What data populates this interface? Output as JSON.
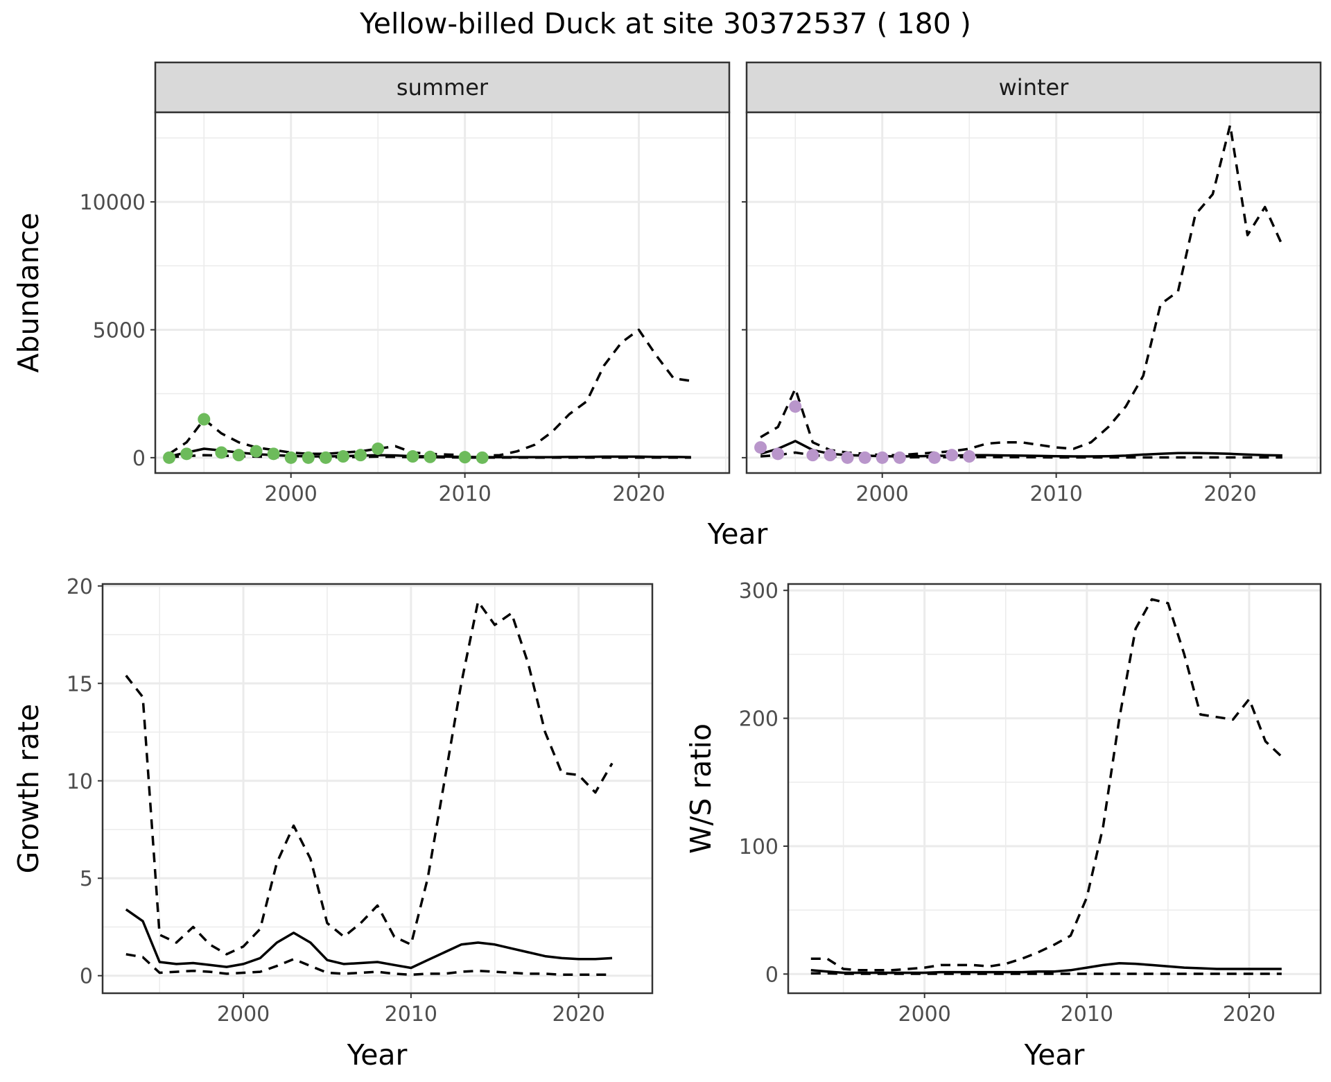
{
  "chart_data": {
    "title": "Yellow-billed Duck at site 30372537 ( 180 )",
    "panels": [
      {
        "type": "line",
        "facet": "summer",
        "xlabel": "Year",
        "ylabel": "Abundance",
        "xlim": [
          1992.2,
          2025.2
        ],
        "ylim": [
          -600,
          13500
        ],
        "xticks": [
          2000,
          2010,
          2020
        ],
        "yticks": [
          0,
          5000,
          10000
        ],
        "grid": true,
        "point_color": "#6dbb5b",
        "upper": {
          "x": [
            1993,
            1994,
            1995,
            1996,
            1997,
            1998,
            1999,
            2000,
            2001,
            2002,
            2003,
            2004,
            2005,
            2006,
            2007,
            2008,
            2009,
            2010,
            2011,
            2012,
            2013,
            2014,
            2015,
            2016,
            2017,
            2018,
            2019,
            2020,
            2021,
            2022,
            2023
          ],
          "y": [
            150,
            600,
            1500,
            950,
            600,
            400,
            300,
            200,
            150,
            150,
            200,
            250,
            350,
            450,
            200,
            150,
            120,
            100,
            80,
            100,
            250,
            500,
            1000,
            1700,
            2200,
            3600,
            4500,
            5000,
            4000,
            3100,
            3000
          ]
        },
        "median": {
          "x": [
            1993,
            1994,
            1995,
            1996,
            1997,
            1998,
            1999,
            2000,
            2001,
            2002,
            2003,
            2004,
            2005,
            2006,
            2007,
            2008,
            2009,
            2010,
            2011,
            2012,
            2013,
            2014,
            2015,
            2016,
            2017,
            2018,
            2019,
            2020,
            2021,
            2022,
            2023
          ],
          "y": [
            50,
            200,
            350,
            280,
            200,
            140,
            100,
            70,
            50,
            50,
            60,
            80,
            100,
            90,
            60,
            50,
            40,
            30,
            20,
            20,
            20,
            20,
            20,
            30,
            30,
            40,
            40,
            40,
            30,
            30,
            20
          ]
        },
        "lower": {
          "x": [
            1993,
            1994,
            1995,
            1996,
            1997,
            1998,
            1999,
            2000,
            2001,
            2002,
            2003,
            2004,
            2005,
            2006,
            2007,
            2008,
            2009,
            2010,
            2011,
            2012,
            2013,
            2014,
            2015,
            2016,
            2017,
            2018,
            2019,
            2020,
            2021,
            2022,
            2023
          ],
          "y": [
            20,
            60,
            100,
            80,
            60,
            40,
            30,
            20,
            10,
            10,
            20,
            30,
            40,
            30,
            20,
            20,
            10,
            5,
            5,
            5,
            5,
            5,
            5,
            5,
            5,
            5,
            5,
            5,
            5,
            5,
            5
          ]
        },
        "observed": {
          "x": [
            1993,
            1994,
            1995,
            1996,
            1997,
            1998,
            1999,
            2000,
            2001,
            2002,
            2003,
            2004,
            2005,
            2007,
            2008,
            2010,
            2011
          ],
          "y": [
            0,
            150,
            1500,
            200,
            100,
            250,
            150,
            0,
            0,
            0,
            50,
            100,
            350,
            50,
            30,
            20,
            0
          ]
        }
      },
      {
        "type": "line",
        "facet": "winter",
        "xlabel": "Year",
        "ylabel": "Abundance",
        "xlim": [
          1992.2,
          2025.2
        ],
        "ylim": [
          -600,
          13500
        ],
        "xticks": [
          2000,
          2010,
          2020
        ],
        "yticks": [
          0,
          5000,
          10000
        ],
        "grid": true,
        "point_color": "#b996cb",
        "upper": {
          "x": [
            1993,
            1994,
            1995,
            1996,
            1997,
            1998,
            1999,
            2000,
            2001,
            2002,
            2003,
            2004,
            2005,
            2006,
            2007,
            2008,
            2009,
            2010,
            2011,
            2012,
            2013,
            2014,
            2015,
            2016,
            2017,
            2018,
            2019,
            2020,
            2021,
            2022,
            2023
          ],
          "y": [
            800,
            1200,
            2700,
            600,
            300,
            200,
            150,
            100,
            100,
            150,
            200,
            250,
            350,
            550,
            600,
            600,
            500,
            400,
            350,
            600,
            1200,
            2000,
            3200,
            6000,
            6500,
            9500,
            10300,
            13000,
            8700,
            9800,
            8300
          ]
        },
        "median": {
          "x": [
            1993,
            1994,
            1995,
            1996,
            1997,
            1998,
            1999,
            2000,
            2001,
            2002,
            2003,
            2004,
            2005,
            2006,
            2007,
            2008,
            2009,
            2010,
            2011,
            2012,
            2013,
            2014,
            2015,
            2016,
            2017,
            2018,
            2019,
            2020,
            2021,
            2022,
            2023
          ],
          "y": [
            150,
            350,
            650,
            300,
            150,
            100,
            80,
            60,
            50,
            60,
            70,
            80,
            100,
            100,
            90,
            80,
            70,
            60,
            50,
            50,
            60,
            80,
            120,
            150,
            180,
            180,
            170,
            150,
            120,
            100,
            90
          ]
        },
        "lower": {
          "x": [
            1993,
            1994,
            1995,
            1996,
            1997,
            1998,
            1999,
            2000,
            2001,
            2002,
            2003,
            2004,
            2005,
            2006,
            2007,
            2008,
            2009,
            2010,
            2011,
            2012,
            2013,
            2014,
            2015,
            2016,
            2017,
            2018,
            2019,
            2020,
            2021,
            2022,
            2023
          ],
          "y": [
            50,
            100,
            200,
            100,
            50,
            30,
            20,
            15,
            10,
            15,
            20,
            20,
            25,
            25,
            20,
            20,
            15,
            10,
            10,
            10,
            10,
            10,
            10,
            10,
            10,
            10,
            10,
            10,
            10,
            10,
            10
          ]
        },
        "observed": {
          "x": [
            1993,
            1994,
            1995,
            1996,
            1997,
            1998,
            1999,
            2000,
            2001,
            2003,
            2004,
            2005
          ],
          "y": [
            400,
            150,
            2000,
            100,
            100,
            0,
            0,
            0,
            0,
            0,
            100,
            50
          ]
        }
      },
      {
        "type": "line",
        "xlabel": "Year",
        "ylabel": "Growth rate",
        "xlim": [
          1991.6,
          2024.4
        ],
        "ylim": [
          -0.9,
          20.1
        ],
        "xticks": [
          2000,
          2010,
          2020
        ],
        "yticks": [
          0,
          5,
          10,
          15,
          20
        ],
        "grid": true,
        "upper": {
          "x": [
            1993,
            1994,
            1995,
            1996,
            1997,
            1998,
            1999,
            2000,
            2001,
            2002,
            2003,
            2004,
            2005,
            2006,
            2007,
            2008,
            2009,
            2010,
            2011,
            2012,
            2013,
            2014,
            2015,
            2016,
            2017,
            2018,
            2019,
            2020,
            2021,
            2022
          ],
          "y": [
            15.4,
            14.3,
            2.1,
            1.7,
            2.5,
            1.6,
            1.1,
            1.5,
            2.4,
            5.8,
            7.7,
            6.0,
            2.7,
            2.0,
            2.7,
            3.6,
            2.0,
            1.6,
            5.0,
            10.0,
            15.0,
            19.2,
            18.0,
            18.6,
            16.0,
            12.5,
            10.4,
            10.3,
            9.4,
            10.9
          ]
        },
        "median": {
          "x": [
            1993,
            1994,
            1995,
            1996,
            1997,
            1998,
            1999,
            2000,
            2001,
            2002,
            2003,
            2004,
            2005,
            2006,
            2007,
            2008,
            2009,
            2010,
            2011,
            2012,
            2013,
            2014,
            2015,
            2016,
            2017,
            2018,
            2019,
            2020,
            2021,
            2022
          ],
          "y": [
            3.4,
            2.8,
            0.7,
            0.6,
            0.65,
            0.55,
            0.45,
            0.6,
            0.9,
            1.7,
            2.2,
            1.7,
            0.8,
            0.6,
            0.65,
            0.7,
            0.55,
            0.4,
            0.8,
            1.2,
            1.6,
            1.7,
            1.6,
            1.4,
            1.2,
            1.0,
            0.9,
            0.85,
            0.85,
            0.9
          ]
        },
        "lower": {
          "x": [
            1993,
            1994,
            1995,
            1996,
            1997,
            1998,
            1999,
            2000,
            2001,
            2002,
            2003,
            2004,
            2005,
            2006,
            2007,
            2008,
            2009,
            2010,
            2011,
            2012,
            2013,
            2014,
            2015,
            2016,
            2017,
            2018,
            2019,
            2020,
            2021,
            2022
          ],
          "y": [
            1.1,
            0.95,
            0.15,
            0.2,
            0.25,
            0.2,
            0.1,
            0.15,
            0.2,
            0.5,
            0.85,
            0.5,
            0.15,
            0.1,
            0.15,
            0.2,
            0.1,
            0.05,
            0.1,
            0.1,
            0.2,
            0.25,
            0.2,
            0.15,
            0.1,
            0.1,
            0.05,
            0.05,
            0.05,
            0.05
          ]
        }
      },
      {
        "type": "line",
        "xlabel": "Year",
        "ylabel": "W/S ratio",
        "xlim": [
          1991.6,
          2024.4
        ],
        "ylim": [
          -15,
          305
        ],
        "xticks": [
          2000,
          2010,
          2020
        ],
        "yticks": [
          0,
          100,
          200,
          300
        ],
        "grid": true,
        "upper": {
          "x": [
            1993,
            1994,
            1995,
            1996,
            1997,
            1998,
            1999,
            2000,
            2001,
            2002,
            2003,
            2004,
            2005,
            2006,
            2007,
            2008,
            2009,
            2010,
            2011,
            2012,
            2013,
            2014,
            2015,
            2016,
            2017,
            2018,
            2019,
            2020,
            2021,
            2022
          ],
          "y": [
            12,
            12,
            4,
            3,
            3,
            3,
            4,
            5,
            7,
            7,
            7,
            6,
            8,
            12,
            17,
            23,
            30,
            60,
            115,
            200,
            270,
            293,
            290,
            250,
            203,
            201,
            199,
            215,
            182,
            170
          ]
        },
        "median": {
          "x": [
            1993,
            1994,
            1995,
            1996,
            1997,
            1998,
            1999,
            2000,
            2001,
            2002,
            2003,
            2004,
            2005,
            2006,
            2007,
            2008,
            2009,
            2010,
            2011,
            2012,
            2013,
            2014,
            2015,
            2016,
            2017,
            2018,
            2019,
            2020,
            2021,
            2022
          ],
          "y": [
            3,
            2,
            1,
            1,
            1,
            1,
            1,
            1,
            1.5,
            1.5,
            1.5,
            1.5,
            1.5,
            1.5,
            2,
            2,
            3,
            5,
            7,
            8.5,
            8,
            7,
            6,
            5,
            4.5,
            4,
            4,
            4,
            4,
            4
          ]
        },
        "lower": {
          "x": [
            1993,
            1994,
            1995,
            1996,
            1997,
            1998,
            1999,
            2000,
            2001,
            2002,
            2003,
            2004,
            2005,
            2006,
            2007,
            2008,
            2009,
            2010,
            2011,
            2012,
            2013,
            2014,
            2015,
            2016,
            2017,
            2018,
            2019,
            2020,
            2021,
            2022
          ],
          "y": [
            0.5,
            0.5,
            0.2,
            0.2,
            0.2,
            0.2,
            0.2,
            0.2,
            0.2,
            0.2,
            0.2,
            0.2,
            0.2,
            0.2,
            0.2,
            0.2,
            0.2,
            0.2,
            0.2,
            0.2,
            0.2,
            0.2,
            0.2,
            0.2,
            0.2,
            0.2,
            0.2,
            0.2,
            0.2,
            0.2
          ]
        }
      }
    ]
  }
}
